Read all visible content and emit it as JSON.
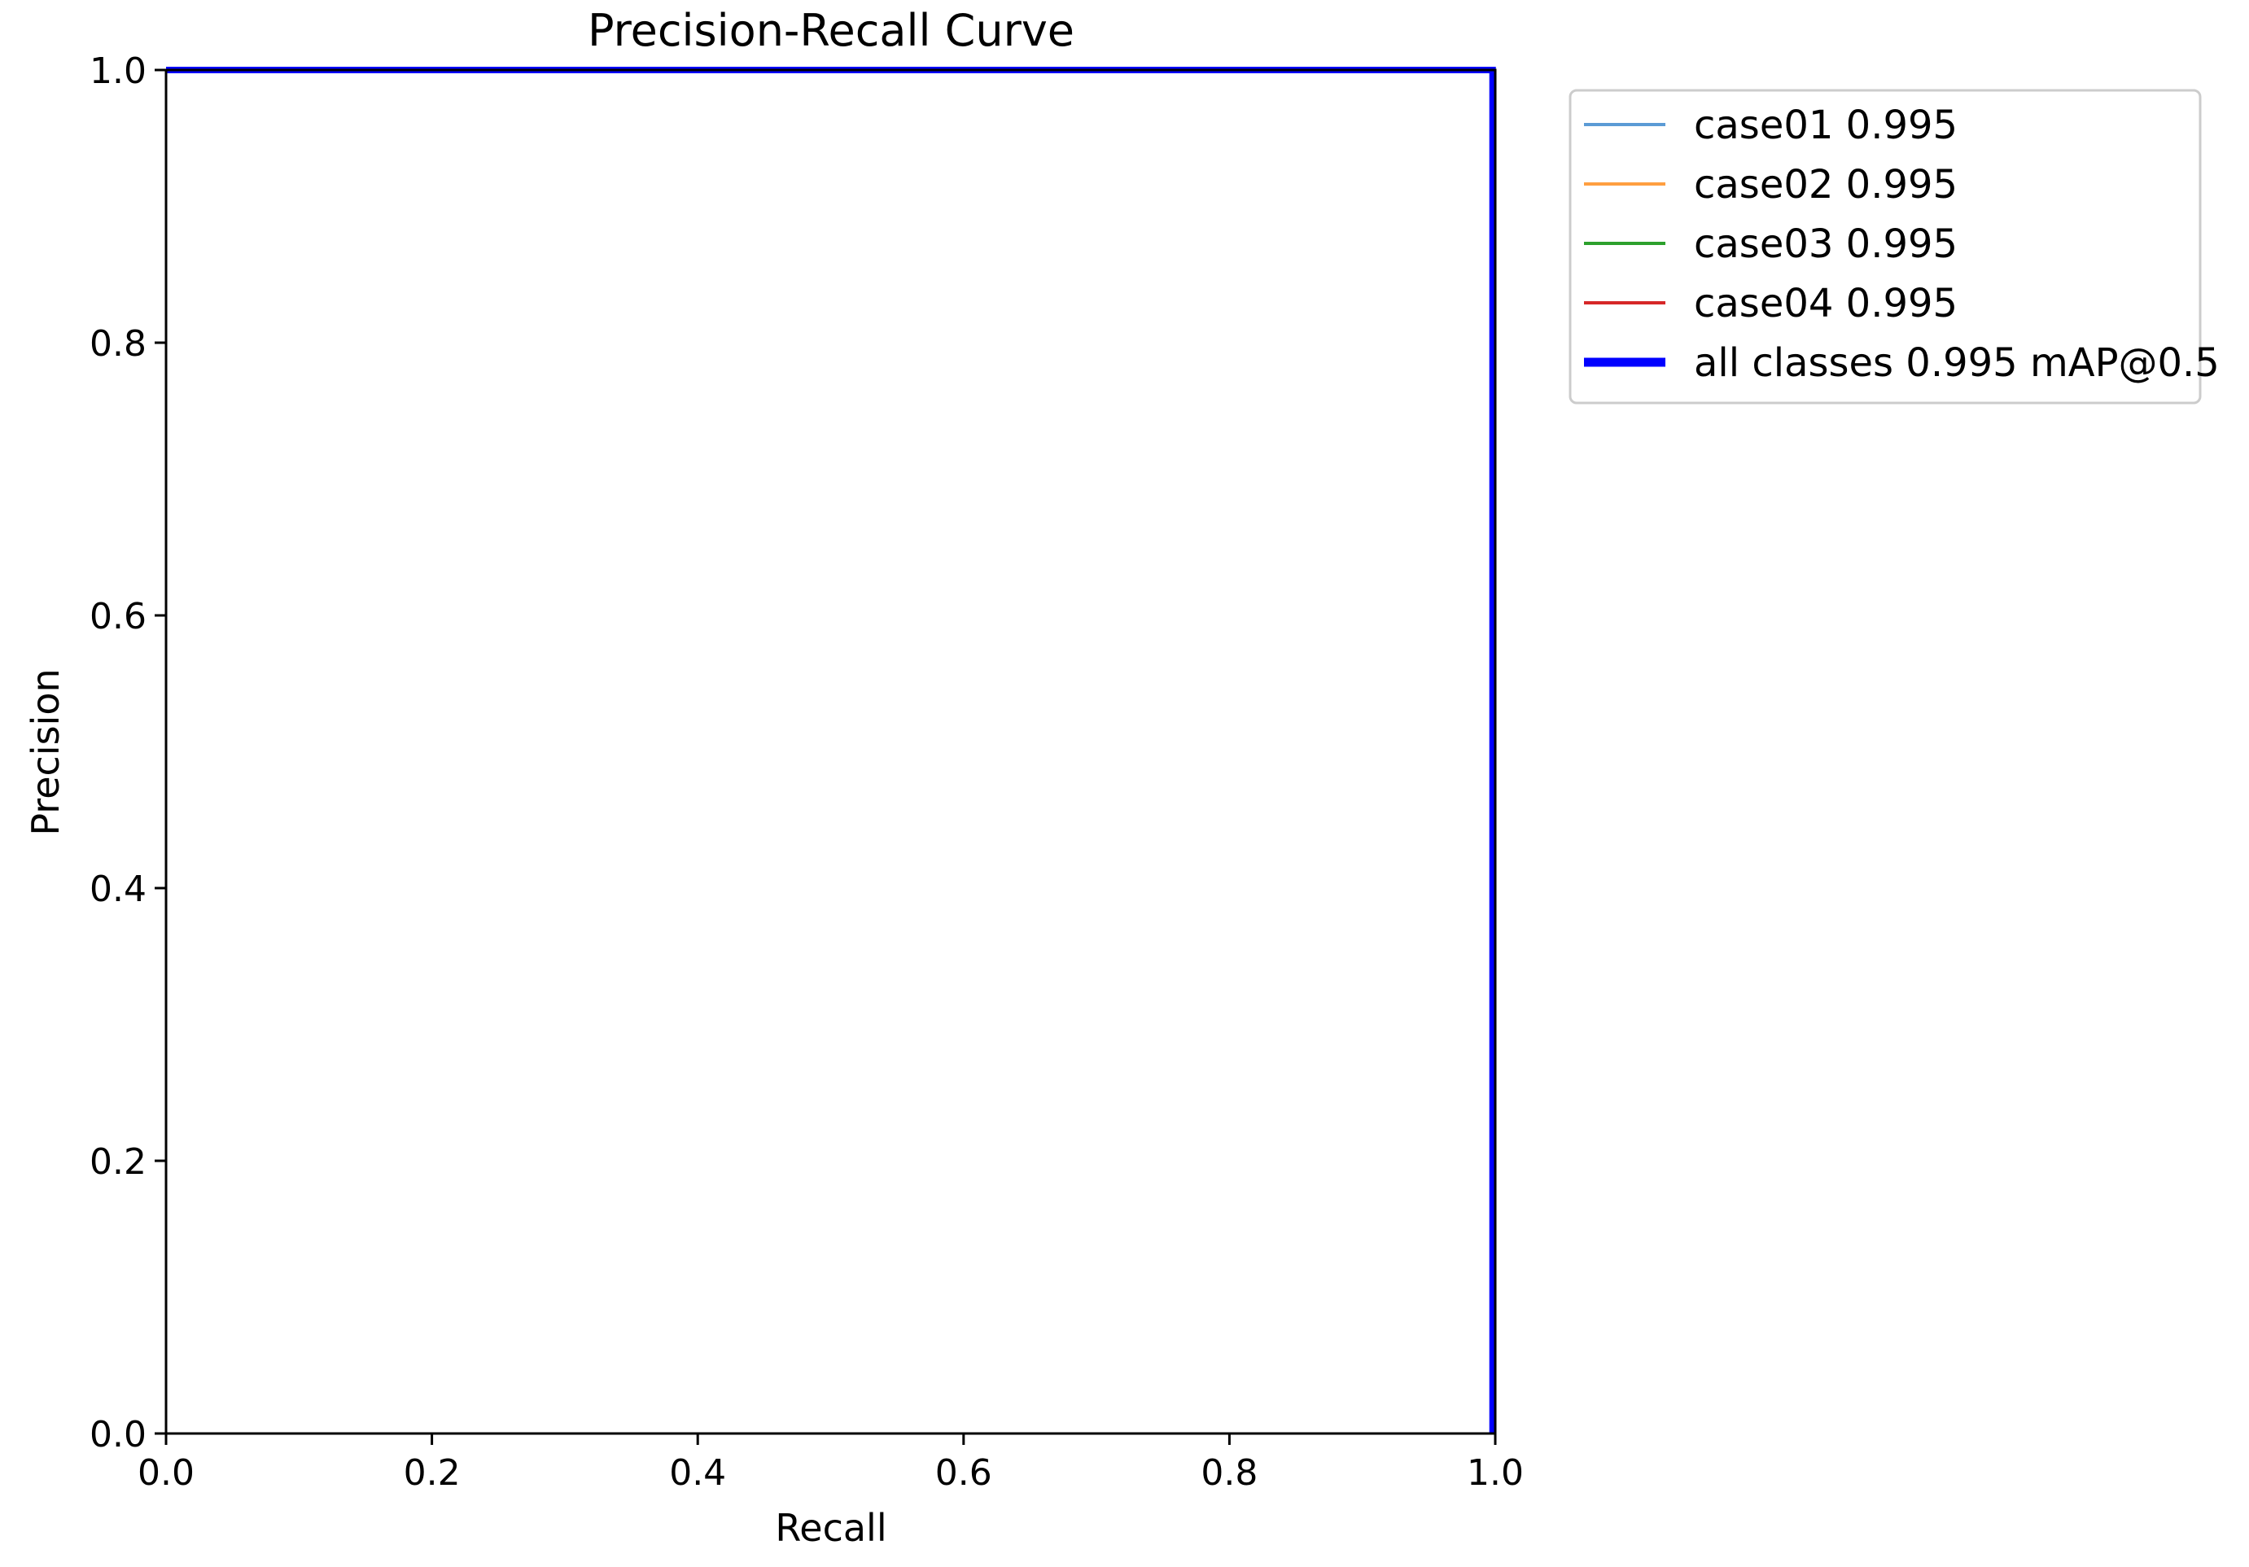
{
  "chart_data": {
    "type": "line",
    "title": "Precision-Recall Curve",
    "xlabel": "Recall",
    "ylabel": "Precision",
    "xlim": [
      0,
      1
    ],
    "ylim": [
      0,
      1
    ],
    "x_ticks": [
      "0.0",
      "0.2",
      "0.4",
      "0.6",
      "0.8",
      "1.0"
    ],
    "y_ticks": [
      "0.0",
      "0.2",
      "0.4",
      "0.6",
      "0.8",
      "1.0"
    ],
    "grid": false,
    "legend_placement": "outside-top-right",
    "series": [
      {
        "name": "case01 0.995",
        "color": "#5b9bd5",
        "weight": "thin",
        "x": [
          0,
          0.998,
          0.998
        ],
        "y": [
          1,
          1,
          0
        ]
      },
      {
        "name": "case02 0.995",
        "color": "#ff9f40",
        "weight": "thin",
        "x": [
          0,
          0.998,
          0.998
        ],
        "y": [
          1,
          1,
          0
        ]
      },
      {
        "name": "case03 0.995",
        "color": "#2ca02c",
        "weight": "thin",
        "x": [
          0,
          0.998,
          0.998
        ],
        "y": [
          1,
          1,
          0
        ]
      },
      {
        "name": "case04 0.995",
        "color": "#d62728",
        "weight": "thin",
        "x": [
          0,
          0.998,
          0.998
        ],
        "y": [
          1,
          1,
          0
        ]
      },
      {
        "name": "all classes 0.995 mAP@0.5",
        "color": "#0000ff",
        "weight": "thick",
        "x": [
          0,
          0.998,
          0.998
        ],
        "y": [
          1,
          1,
          0
        ]
      }
    ]
  }
}
